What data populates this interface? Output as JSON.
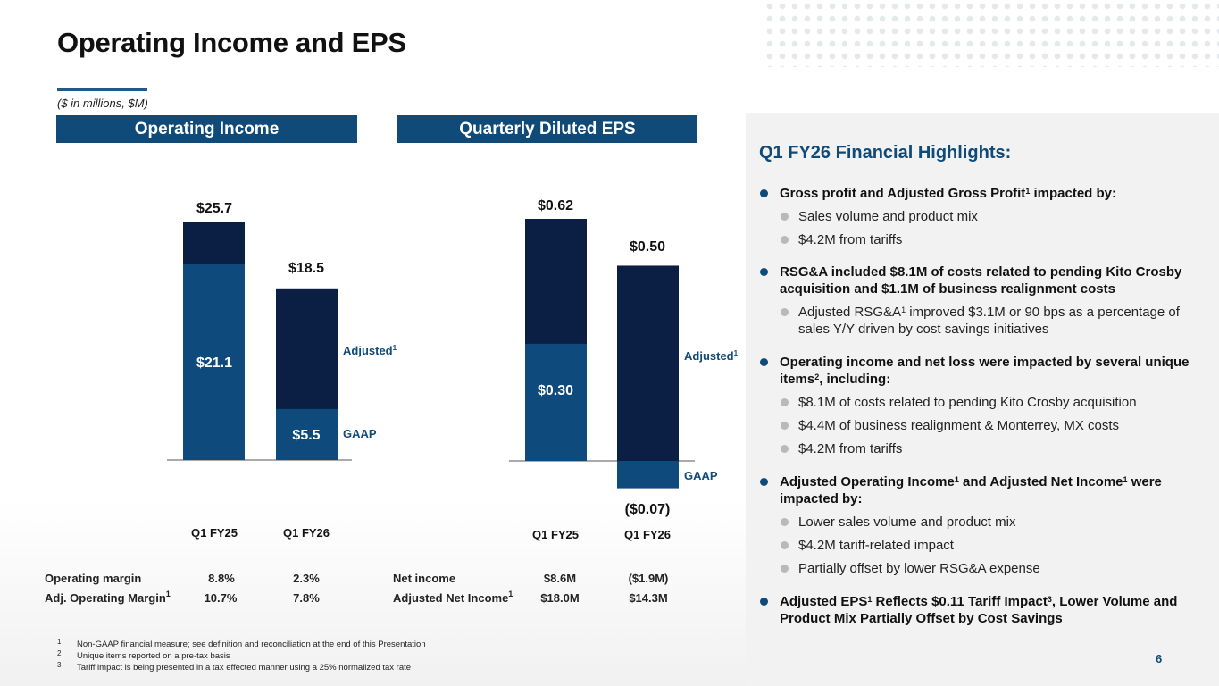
{
  "title": "Operating Income and EPS",
  "units_note": "($ in millions, $M)",
  "colors": {
    "gaap": "#0e4a7c",
    "adjusted": "#0b1f44",
    "accent": "#0f4a78"
  },
  "op_income": {
    "header": "Operating Income",
    "adjusted_label": "Adjusted",
    "adjusted_sup": "1",
    "gaap_label": "GAAP",
    "categories": [
      "Q1 FY25",
      "Q1 FY26"
    ],
    "bars": [
      {
        "total": 25.7,
        "gaap": 21.1,
        "total_label": "$25.7",
        "gaap_label": "$21.1"
      },
      {
        "total": 18.5,
        "gaap": 5.5,
        "total_label": "$18.5",
        "gaap_label": "$5.5"
      }
    ]
  },
  "eps": {
    "header": "Quarterly Diluted EPS",
    "adjusted_label": "Adjusted",
    "adjusted_sup": "1",
    "gaap_label": "GAAP",
    "categories": [
      "Q1 FY25",
      "Q1 FY26"
    ],
    "bars": [
      {
        "total": 0.62,
        "gaap": 0.3,
        "total_label": "$0.62",
        "gaap_label": "$0.30"
      },
      {
        "total": 0.5,
        "gaap": -0.07,
        "total_label": "$0.50",
        "gaap_label": "($0.07)"
      }
    ]
  },
  "chart_data": [
    {
      "type": "bar",
      "title": "Operating Income",
      "categories": [
        "Q1 FY25",
        "Q1 FY26"
      ],
      "series": [
        {
          "name": "GAAP",
          "values": [
            21.1,
            5.5
          ]
        },
        {
          "name": "Adjusted",
          "values": [
            25.7,
            18.5
          ]
        }
      ],
      "ylim": [
        0,
        30
      ]
    },
    {
      "type": "bar",
      "title": "Quarterly Diluted EPS",
      "categories": [
        "Q1 FY25",
        "Q1 FY26"
      ],
      "series": [
        {
          "name": "GAAP",
          "values": [
            0.3,
            -0.07
          ]
        },
        {
          "name": "Adjusted",
          "values": [
            0.62,
            0.5
          ]
        }
      ],
      "ylim": [
        -0.1,
        0.7
      ]
    }
  ],
  "left_table": {
    "rows": [
      {
        "label": "Operating margin",
        "sup": "",
        "v1": "8.8%",
        "v2": "2.3%"
      },
      {
        "label": "Adj. Operating Margin",
        "sup": "1",
        "v1": "10.7%",
        "v2": "7.8%"
      }
    ]
  },
  "right_table": {
    "rows": [
      {
        "label": "Net income",
        "sup": "",
        "v1": "$8.6M",
        "v2": "($1.9M)"
      },
      {
        "label": "Adjusted Net Income",
        "sup": "1",
        "v1": "$18.0M",
        "v2": "$14.3M"
      }
    ]
  },
  "highlights": {
    "title": "Q1 FY26 Financial Highlights:",
    "b1": {
      "a": "Gross profit and Adjusted Gross Profit",
      "s": "1",
      "b": " impacted by:"
    },
    "b1_1": "Sales volume and product mix",
    "b1_2": "$4.2M from tariffs",
    "b2": "RSG&A included $8.1M of costs related to pending Kito Crosby acquisition and $1.1M of business realignment costs",
    "b2_1": {
      "a": "Adjusted RSG&A",
      "s": "1",
      "b": " improved $3.1M or 90 bps as a percentage of sales Y/Y driven by cost savings initiatives"
    },
    "b3": {
      "a": "Operating income and net loss were impacted by several unique items",
      "s": "2",
      "b": ", including:"
    },
    "b3_1": "$8.1M of costs related to pending Kito Crosby acquisition",
    "b3_2": "$4.4M of business realignment & Monterrey, MX costs",
    "b3_3": "$4.2M from tariffs",
    "b4": {
      "a": "Adjusted Operating Income",
      "s": "1",
      "b": " and Adjusted Net Income",
      "s2": "1",
      "c": " were impacted by:"
    },
    "b4_1": "Lower sales volume and product mix",
    "b4_2": "$4.2M tariff-related impact",
    "b4_3": "Partially offset by lower RSG&A expense",
    "b5": {
      "a": "Adjusted EPS",
      "s": "1",
      "b": " Reflects $0.11 Tariff Impact",
      "s2": "3",
      "c": ", Lower Volume and Product Mix Partially Offset by Cost Savings"
    }
  },
  "footnotes": [
    {
      "n": "1",
      "text": "Non-GAAP financial measure; see definition and reconciliation at the end of this Presentation"
    },
    {
      "n": "2",
      "text": "Unique items reported on a pre-tax basis"
    },
    {
      "n": "3",
      "text": "Tariff impact is being presented in a tax effected manner using a 25% normalized tax rate"
    }
  ],
  "page_number": "6"
}
